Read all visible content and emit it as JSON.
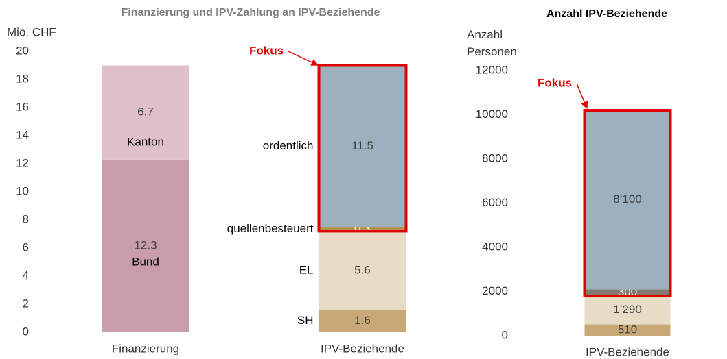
{
  "chart_data": [
    {
      "type": "stacked_bar",
      "title": "Finanzierung und IPV-Zahlung an IPV-Beziehende",
      "ylabel": "Mio. CHF",
      "annotation": "Fokus",
      "categories": [
        "Finanzierung",
        "IPV-Beziehende"
      ],
      "ylim": [
        0,
        20
      ],
      "yticks": [
        0,
        2,
        4,
        6,
        8,
        10,
        12,
        14,
        16,
        18,
        20
      ],
      "series": [
        {
          "name": "Bund",
          "color": "#c89ca8",
          "values": [
            12.3,
            null
          ],
          "label_position": "inside"
        },
        {
          "name": "Kanton",
          "color": "#dfc0c8",
          "values": [
            6.7,
            null
          ],
          "label_position": "inside"
        },
        {
          "name": "SH",
          "color": "#c9a878",
          "values": [
            null,
            1.6
          ],
          "label_position": "left"
        },
        {
          "name": "EL",
          "color": "#e9dcc7",
          "values": [
            null,
            5.6
          ],
          "label_position": "left"
        },
        {
          "name": "quellenbesteuert",
          "color": "#b8924f",
          "values": [
            null,
            0.3
          ],
          "label_position": "left",
          "label_color": "#ffffff",
          "focus": true
        },
        {
          "name": "ordentlich",
          "color": "#9eb0be",
          "values": [
            null,
            11.5
          ],
          "label_position": "left",
          "focus": true
        }
      ]
    },
    {
      "type": "stacked_bar",
      "title": "Anzahl IPV-Beziehende",
      "ylabel": "Anzahl Personen",
      "annotation": "Fokus",
      "categories": [
        "IPV-Beziehende"
      ],
      "ylim": [
        0,
        12000
      ],
      "yticks": [
        0,
        2000,
        4000,
        6000,
        8000,
        10000,
        12000
      ],
      "series": [
        {
          "color": "#c9a878",
          "values": [
            510
          ],
          "value_labels": [
            "510"
          ]
        },
        {
          "color": "#e9dcc7",
          "values": [
            1290
          ],
          "value_labels": [
            "1’290"
          ]
        },
        {
          "color": "#857a72",
          "values": [
            300
          ],
          "value_labels": [
            "300"
          ],
          "label_color": "#ffffff",
          "focus": true
        },
        {
          "color": "#9eb0be",
          "values": [
            8100
          ],
          "value_labels": [
            "8’100"
          ],
          "focus": true
        }
      ]
    }
  ]
}
